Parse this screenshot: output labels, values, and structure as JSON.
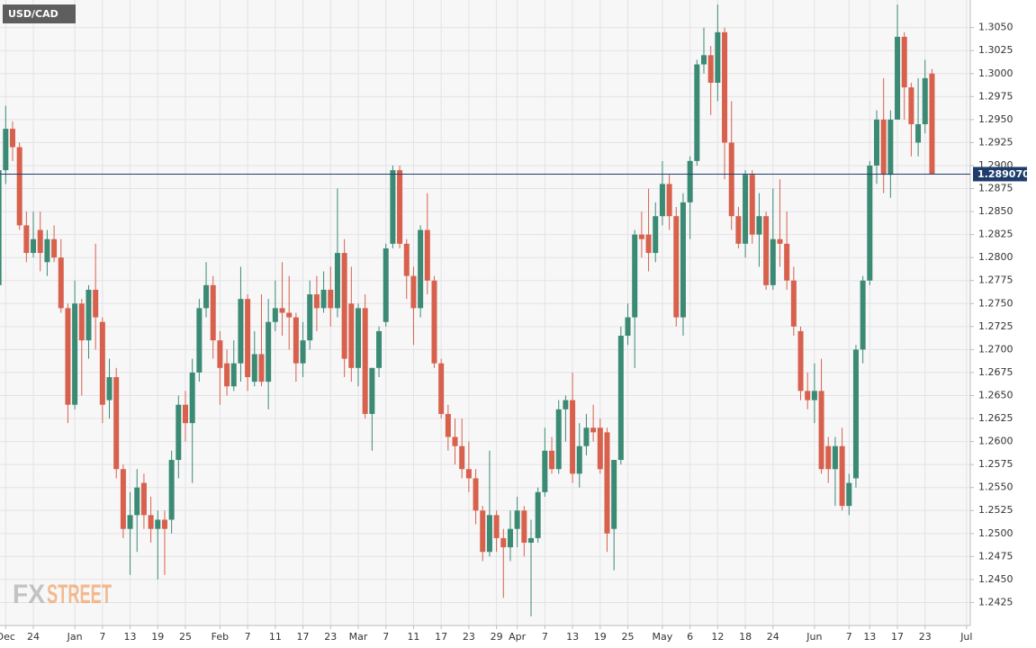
{
  "chart_data": {
    "type": "candlestick",
    "title": "USD/CAD",
    "brand": {
      "fx": "FX",
      "street": "STREET"
    },
    "up_color": "#3b8a74",
    "down_color": "#d7614c",
    "grid": true,
    "ylim": [
      1.24,
      1.308
    ],
    "yticks": [
      {
        "value": 1.2425,
        "label": "1.2425"
      },
      {
        "value": 1.245,
        "label": "1.2450"
      },
      {
        "value": 1.2475,
        "label": "1.2475"
      },
      {
        "value": 1.25,
        "label": "1.2500"
      },
      {
        "value": 1.2525,
        "label": "1.2525"
      },
      {
        "value": 1.255,
        "label": "1.2550"
      },
      {
        "value": 1.2575,
        "label": "1.2575"
      },
      {
        "value": 1.26,
        "label": "1.2600"
      },
      {
        "value": 1.2625,
        "label": "1.2625"
      },
      {
        "value": 1.265,
        "label": "1.2650"
      },
      {
        "value": 1.2675,
        "label": "1.2675"
      },
      {
        "value": 1.27,
        "label": "1.2700"
      },
      {
        "value": 1.2725,
        "label": "1.2725"
      },
      {
        "value": 1.275,
        "label": "1.2750"
      },
      {
        "value": 1.2775,
        "label": "1.2775"
      },
      {
        "value": 1.28,
        "label": "1.2800"
      },
      {
        "value": 1.2825,
        "label": "1.2825"
      },
      {
        "value": 1.285,
        "label": "1.2850"
      },
      {
        "value": 1.2875,
        "label": "1.2875"
      },
      {
        "value": 1.29,
        "label": "1.2900"
      },
      {
        "value": 1.2925,
        "label": "1.2925"
      },
      {
        "value": 1.295,
        "label": "1.2950"
      },
      {
        "value": 1.2975,
        "label": "1.2975"
      },
      {
        "value": 1.3,
        "label": "1.3000"
      },
      {
        "value": 1.3025,
        "label": "1.3025"
      },
      {
        "value": 1.305,
        "label": "1.3050"
      }
    ],
    "last_price": {
      "value": 1.28907,
      "label": "1.289070"
    },
    "last_color": "#1f3d6b",
    "categories": [
      null,
      "Dec",
      null,
      null,
      null,
      "24",
      null,
      null,
      null,
      null,
      null,
      "Jan",
      null,
      null,
      null,
      "7",
      null,
      null,
      null,
      "13",
      null,
      null,
      null,
      "19",
      null,
      null,
      null,
      "25",
      null,
      null,
      null,
      null,
      "Feb",
      null,
      null,
      null,
      "7",
      null,
      null,
      null,
      "11",
      null,
      null,
      null,
      "17",
      null,
      null,
      null,
      "23",
      null,
      null,
      null,
      "Mar",
      null,
      null,
      null,
      "7",
      null,
      null,
      null,
      "11",
      null,
      null,
      null,
      "17",
      null,
      null,
      null,
      "23",
      null,
      null,
      null,
      "29",
      null,
      null,
      "Apr",
      null,
      null,
      null,
      "7",
      null,
      null,
      null,
      "13",
      null,
      null,
      null,
      "19",
      null,
      null,
      null,
      "25",
      null,
      null,
      null,
      null,
      "May",
      null,
      null,
      null,
      "6",
      null,
      null,
      null,
      "12",
      null,
      null,
      null,
      "18",
      null,
      null,
      null,
      "24",
      null,
      null,
      null,
      null,
      null,
      "Jun",
      null,
      null,
      null,
      null,
      "7",
      null,
      null,
      "13",
      null,
      null,
      null,
      "17",
      null,
      null,
      null,
      "23",
      null,
      null,
      null,
      null,
      null,
      "Jul"
    ],
    "open": [
      1.277,
      1.2895,
      1.294,
      1.292,
      1.2835,
      1.2805,
      1.283,
      1.2795,
      1.282,
      1.28,
      1.2745,
      1.264,
      1.275,
      1.271,
      1.2765,
      1.273,
      1.2645,
      1.267,
      1.257,
      1.2505,
      1.252,
      1.2555,
      1.252,
      1.2505,
      1.2515,
      1.2515,
      1.258,
      1.264,
      1.262,
      1.2675,
      1.2745,
      1.277,
      1.271,
      1.2685,
      1.266,
      1.2685,
      1.2755,
      1.2665,
      1.2695,
      1.2665,
      1.273,
      1.2745,
      1.274,
      1.2735,
      1.2685,
      1.271,
      1.276,
      1.2745,
      1.2765,
      1.2745,
      1.2805,
      1.275,
      1.268,
      1.2745,
      1.263,
      1.268,
      1.273,
      1.2815,
      1.2895,
      1.2815,
      1.278,
      1.2745,
      1.283,
      1.2775,
      1.2685,
      1.263,
      1.2605,
      1.2595,
      1.257,
      1.256,
      1.2525,
      1.248,
      1.252,
      1.2495,
      1.2485,
      1.2505,
      1.2525,
      1.249,
      1.2495,
      1.2545,
      1.259,
      1.257,
      1.2635,
      1.2645,
      1.2565,
      1.2595,
      1.2615,
      1.2615,
      1.261,
      1.2505,
      1.258,
      1.2715,
      1.2735,
      1.2825,
      1.2825,
      1.2805,
      1.2845,
      1.288,
      1.2845,
      1.2735,
      1.286,
      1.2905,
      1.301,
      1.302,
      1.299,
      1.3045,
      1.2925,
      1.2845,
      1.2815,
      1.289,
      1.2825,
      1.2845,
      1.277,
      1.282,
      1.2815,
      1.2775,
      1.272,
      1.2655,
      1.2645,
      1.2655,
      1.2595,
      1.257,
      1.2595,
      1.253,
      1.256,
      1.27,
      1.2775,
      1.29,
      1.295,
      1.289,
      1.295,
      1.304,
      1.2985,
      1.2925,
      1.2945,
      1.3,
      null,
      null,
      null,
      null,
      null
    ],
    "high": [
      1.29,
      1.2965,
      1.2948,
      1.2925,
      1.285,
      1.285,
      1.285,
      1.283,
      1.2835,
      1.282,
      1.275,
      1.2775,
      1.2755,
      1.277,
      1.2815,
      1.2735,
      1.269,
      1.268,
      1.2575,
      1.2545,
      1.257,
      1.2565,
      1.254,
      1.2525,
      1.2525,
      1.259,
      1.265,
      1.2655,
      1.269,
      1.2755,
      1.2795,
      1.278,
      1.272,
      1.27,
      1.271,
      1.279,
      1.276,
      1.272,
      1.276,
      1.2755,
      1.2775,
      1.2795,
      1.278,
      1.274,
      1.273,
      1.2775,
      1.278,
      1.2785,
      1.279,
      1.2875,
      1.282,
      1.279,
      1.275,
      1.276,
      1.268,
      1.2725,
      1.2815,
      1.29,
      1.29,
      1.282,
      1.279,
      1.2835,
      1.287,
      1.278,
      1.269,
      1.264,
      1.2625,
      1.2625,
      1.26,
      1.257,
      1.253,
      1.259,
      1.2525,
      1.2505,
      1.2525,
      1.254,
      1.253,
      1.2515,
      1.255,
      1.2615,
      1.2605,
      1.2645,
      1.265,
      1.2675,
      1.262,
      1.263,
      1.264,
      1.2625,
      1.2615,
      1.258,
      1.2725,
      1.275,
      1.283,
      1.285,
      1.2875,
      1.286,
      1.2905,
      1.289,
      1.2855,
      1.287,
      1.291,
      1.3015,
      1.305,
      1.303,
      1.3075,
      1.305,
      1.297,
      1.2855,
      1.2895,
      1.2895,
      1.287,
      1.285,
      1.2875,
      1.2885,
      1.285,
      1.279,
      1.2725,
      1.2675,
      1.2685,
      1.269,
      1.2605,
      1.2605,
      1.2615,
      1.2565,
      1.2705,
      1.278,
      1.2905,
      1.296,
      1.2995,
      1.296,
      1.3075,
      1.3045,
      1.299,
      1.2995,
      1.3015,
      1.3005,
      null,
      null,
      null,
      null,
      null
    ],
    "low": [
      1.276,
      1.288,
      1.2905,
      1.283,
      1.2795,
      1.28,
      1.2785,
      1.278,
      1.2795,
      1.274,
      1.262,
      1.2635,
      1.265,
      1.269,
      1.27,
      1.262,
      1.2625,
      1.256,
      1.2495,
      1.2455,
      1.248,
      1.2505,
      1.249,
      1.245,
      1.2455,
      1.25,
      1.256,
      1.26,
      1.2555,
      1.2665,
      1.2735,
      1.269,
      1.264,
      1.265,
      1.2655,
      1.2665,
      1.2655,
      1.266,
      1.266,
      1.2635,
      1.272,
      1.2715,
      1.27,
      1.2665,
      1.267,
      1.27,
      1.272,
      1.274,
      1.2725,
      1.2735,
      1.267,
      1.2665,
      1.266,
      1.2625,
      1.259,
      1.267,
      1.2725,
      1.281,
      1.281,
      1.2755,
      1.2705,
      1.2735,
      1.276,
      1.268,
      1.2625,
      1.259,
      1.2575,
      1.256,
      1.2545,
      1.251,
      1.247,
      1.2475,
      1.248,
      1.243,
      1.247,
      1.2485,
      1.2475,
      1.241,
      1.249,
      1.254,
      1.2565,
      1.2565,
      1.26,
      1.2555,
      1.255,
      1.2585,
      1.26,
      1.2565,
      1.248,
      1.246,
      1.2575,
      1.2705,
      1.268,
      1.28,
      1.2785,
      1.2795,
      1.2835,
      1.283,
      1.2725,
      1.2715,
      1.282,
      1.29,
      1.3,
      1.2955,
      1.297,
      1.2885,
      1.283,
      1.281,
      1.28,
      1.2815,
      1.279,
      1.2765,
      1.2765,
      1.279,
      1.2765,
      1.2715,
      1.2645,
      1.2635,
      1.262,
      1.2565,
      1.2555,
      1.253,
      1.2525,
      1.252,
      1.255,
      1.2685,
      1.277,
      1.288,
      1.287,
      1.2865,
      1.295,
      1.295,
      1.291,
      1.291,
      1.2935,
      1.2891,
      null,
      null,
      null,
      null,
      null
    ],
    "close": [
      1.2895,
      1.294,
      1.292,
      1.2835,
      1.2805,
      1.282,
      1.2805,
      1.282,
      1.28,
      1.2745,
      1.264,
      1.275,
      1.271,
      1.2765,
      1.2735,
      1.264,
      1.267,
      1.257,
      1.2505,
      1.252,
      1.255,
      1.252,
      1.2505,
      1.2515,
      1.2505,
      1.258,
      1.264,
      1.262,
      1.2675,
      1.2745,
      1.277,
      1.271,
      1.268,
      1.266,
      1.2685,
      1.2755,
      1.267,
      1.2695,
      1.2665,
      1.273,
      1.2745,
      1.274,
      1.2735,
      1.2685,
      1.271,
      1.276,
      1.2745,
      1.2765,
      1.2745,
      1.2805,
      1.269,
      1.268,
      1.2745,
      1.263,
      1.268,
      1.272,
      1.281,
      1.2895,
      1.2815,
      1.278,
      1.2745,
      1.283,
      1.2775,
      1.2685,
      1.263,
      1.2605,
      1.2595,
      1.257,
      1.256,
      1.2525,
      1.248,
      1.252,
      1.2495,
      1.2485,
      1.2505,
      1.2525,
      1.249,
      1.2495,
      1.2545,
      1.259,
      1.257,
      1.2635,
      1.2645,
      1.2565,
      1.2595,
      1.2615,
      1.261,
      1.257,
      1.25,
      1.258,
      1.2715,
      1.2735,
      1.2825,
      1.282,
      1.2805,
      1.2845,
      1.288,
      1.2845,
      1.2735,
      1.286,
      1.2905,
      1.301,
      1.302,
      1.299,
      1.3045,
      1.2925,
      1.2845,
      1.2815,
      1.289,
      1.2825,
      1.2845,
      1.277,
      1.282,
      1.2815,
      1.2775,
      1.2725,
      1.2655,
      1.2645,
      1.2655,
      1.257,
      1.257,
      1.2595,
      1.253,
      1.2555,
      1.27,
      1.2775,
      1.29,
      1.295,
      1.289,
      1.295,
      1.304,
      1.2985,
      1.2945,
      1.2945,
      1.2995,
      1.28907,
      null,
      null,
      null,
      null,
      null
    ]
  }
}
